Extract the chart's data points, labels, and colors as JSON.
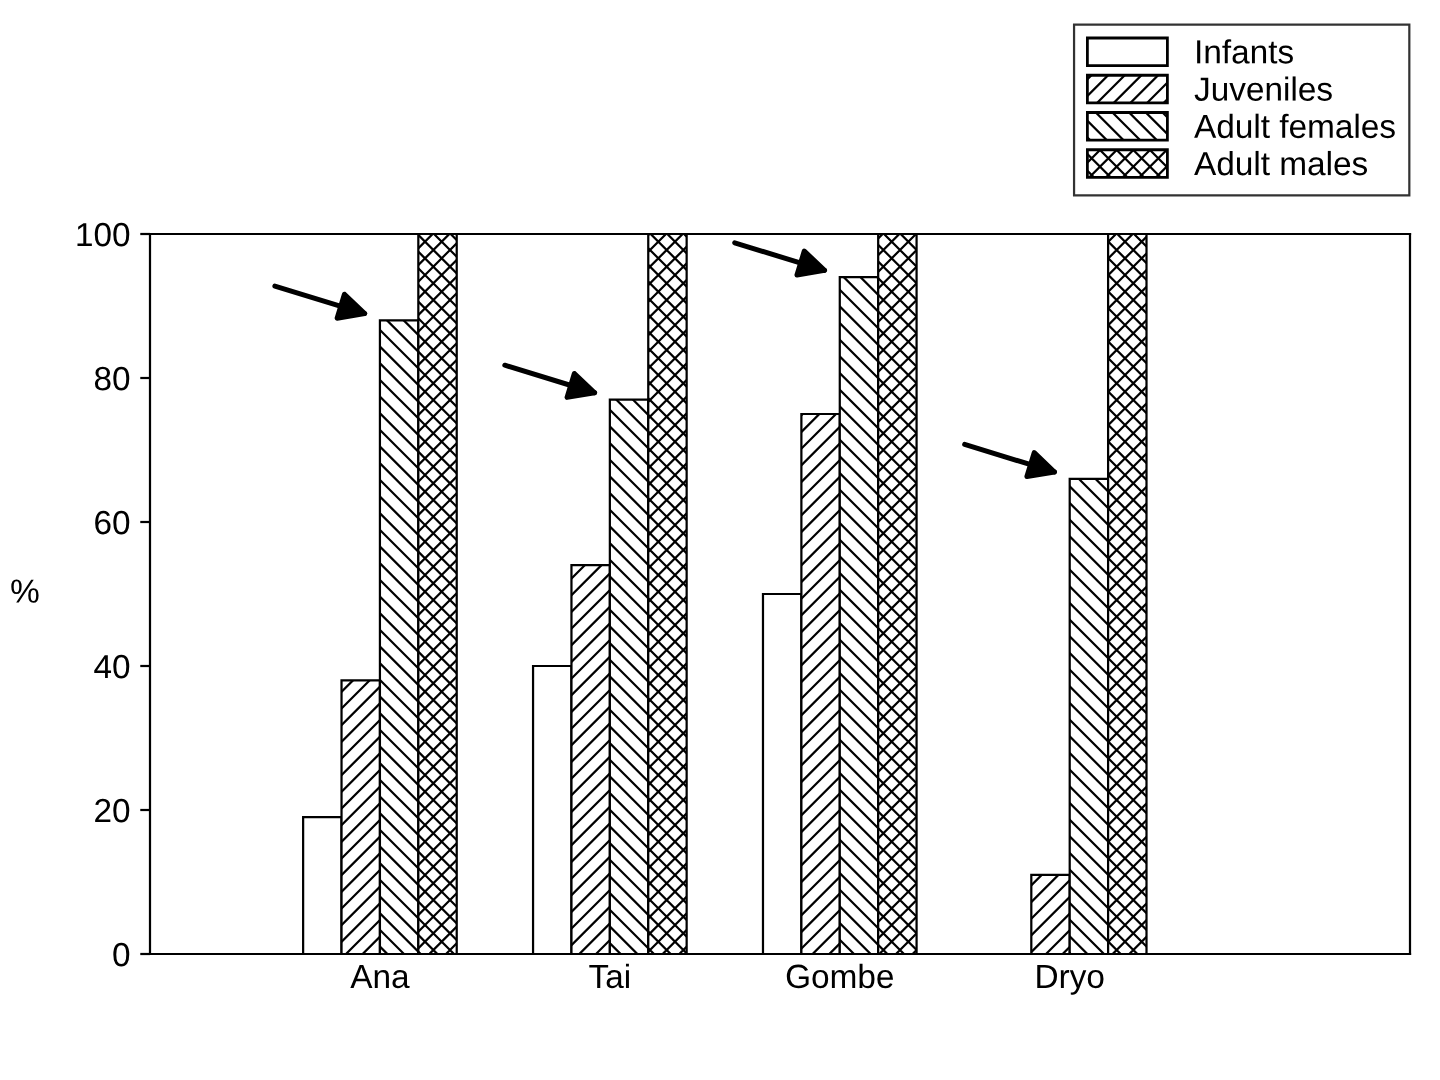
{
  "chart_data": {
    "type": "bar",
    "ylabel": "%",
    "categories": [
      "Ana",
      "Tai",
      "Gombe",
      "Dryo"
    ],
    "series": [
      {
        "name": "Infants",
        "color": "#ffffff",
        "values": [
          19,
          40,
          50,
          null
        ]
      },
      {
        "name": "Juveniles",
        "values": [
          38,
          54,
          75,
          11
        ]
      },
      {
        "name": "Adult females",
        "values": [
          88,
          77,
          94,
          66
        ]
      },
      {
        "name": "Adult males",
        "values": [
          100,
          100,
          100,
          100
        ]
      }
    ],
    "ylim": [
      0,
      100
    ],
    "yticks": [
      0,
      20,
      40,
      60,
      80,
      100
    ],
    "grid": false,
    "legend": "top right"
  }
}
